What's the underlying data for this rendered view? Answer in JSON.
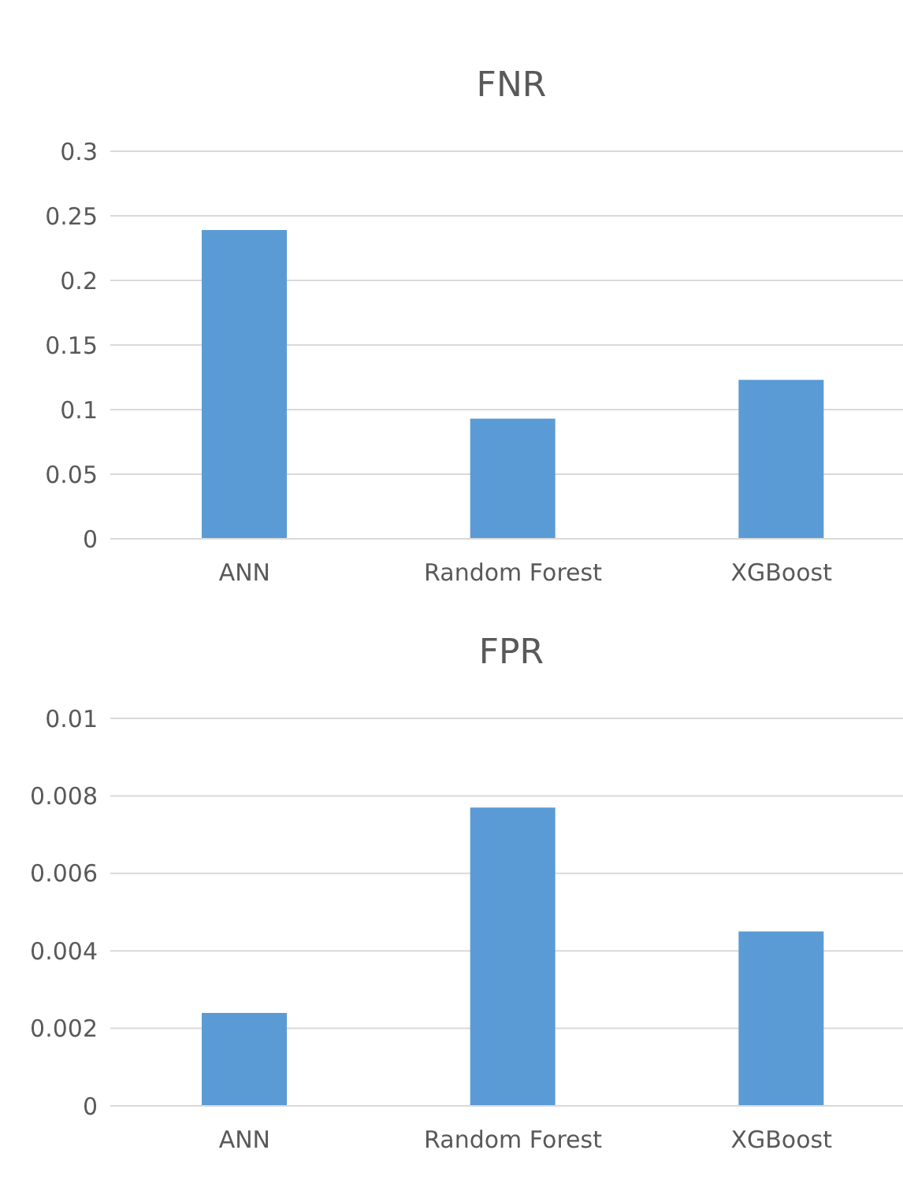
{
  "chart_data": [
    {
      "type": "bar",
      "title": "FNR",
      "categories": [
        "ANN",
        "Random Forest",
        "XGBoost"
      ],
      "values": [
        0.239,
        0.093,
        0.123
      ],
      "color": "#5b9bd5",
      "ylim": [
        0,
        0.3
      ],
      "yticks": [
        0,
        0.05,
        0.1,
        0.15,
        0.2,
        0.25,
        0.3
      ],
      "grid": "y",
      "legend": false
    },
    {
      "type": "bar",
      "title": "FPR",
      "categories": [
        "ANN",
        "Random Forest",
        "XGBoost"
      ],
      "values": [
        0.0024,
        0.0077,
        0.0045
      ],
      "color": "#5b9bd5",
      "ylim": [
        0,
        0.01
      ],
      "yticks": [
        0,
        0.002,
        0.004,
        0.006,
        0.008,
        0.01
      ],
      "grid": "y",
      "legend": false
    }
  ]
}
